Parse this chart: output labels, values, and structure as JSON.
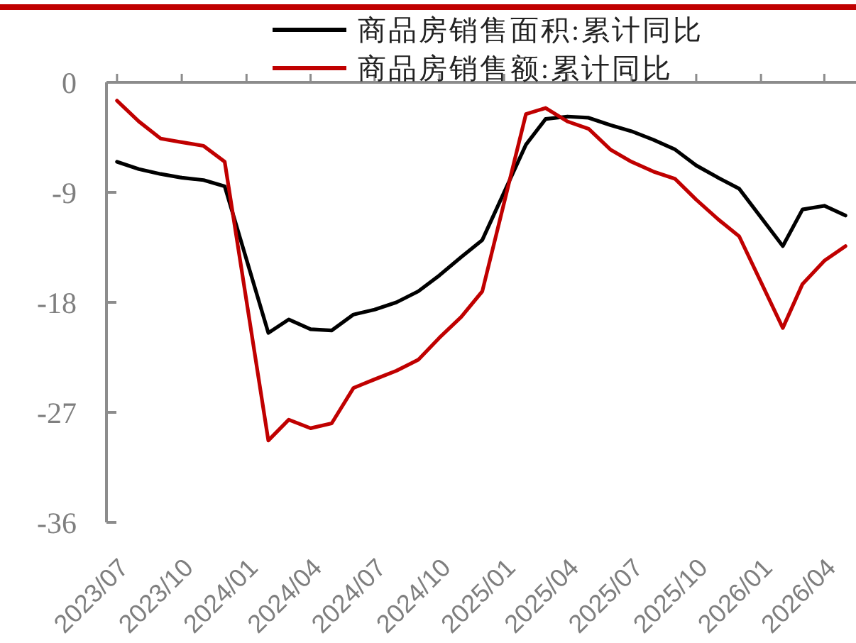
{
  "chart_data": {
    "type": "line",
    "legend": "top",
    "xlim": [
      "2023-06-16",
      "2026-05-16"
    ],
    "xticks": [
      {
        "value": "2023-07",
        "label": "2023/07"
      },
      {
        "value": "2023-10",
        "label": "2023/10"
      },
      {
        "value": "2024-01",
        "label": "2024/01"
      },
      {
        "value": "2024-04",
        "label": "2024/04"
      },
      {
        "value": "2024-07",
        "label": "2024/07"
      },
      {
        "value": "2024-10",
        "label": "2024/10"
      },
      {
        "value": "2025-01",
        "label": "2025/01"
      },
      {
        "value": "2025-04",
        "label": "2025/04"
      },
      {
        "value": "2025-07",
        "label": "2025/07"
      },
      {
        "value": "2025-10",
        "label": "2025/10"
      },
      {
        "value": "2026-01",
        "label": "2026/01"
      },
      {
        "value": "2026-04",
        "label": "2026/04"
      }
    ],
    "ylim": [
      -36,
      0
    ],
    "yticks": [
      -36,
      -27,
      -18,
      -9,
      0
    ],
    "x": [
      "2023-07",
      "2023-08",
      "2023-09",
      "2023-10",
      "2023-11",
      "2023-12",
      "2024-02",
      "2024-03",
      "2024-04",
      "2024-05",
      "2024-06",
      "2024-07",
      "2024-08",
      "2024-09",
      "2024-10",
      "2024-11",
      "2024-12",
      "2025-02",
      "2025-03",
      "2025-04",
      "2025-05",
      "2025-06",
      "2025-07",
      "2025-08",
      "2025-09",
      "2025-10",
      "2025-11",
      "2025-12",
      "2026-02",
      "2026-03",
      "2026-04",
      "2026-05"
    ],
    "series": [
      {
        "name": "商品房销售面积:累计同比",
        "color": "#000000",
        "values": [
          -6.5,
          -7.1,
          -7.5,
          -7.8,
          -8.0,
          -8.5,
          -20.5,
          -19.4,
          -20.2,
          -20.3,
          -19.0,
          -18.6,
          -18.0,
          -17.1,
          -15.8,
          -14.3,
          -12.9,
          -5.1,
          -3.0,
          -2.8,
          -2.9,
          -3.5,
          -4.0,
          -4.7,
          -5.5,
          -6.8,
          -7.8,
          -8.7,
          -13.4,
          -10.4,
          -10.1,
          -10.9
        ]
      },
      {
        "name": "商品房销售额:累计同比",
        "color": "#c00000",
        "values": [
          -1.5,
          -3.2,
          -4.6,
          -4.9,
          -5.2,
          -6.5,
          -29.3,
          -27.6,
          -28.3,
          -27.9,
          -25.0,
          -24.3,
          -23.6,
          -22.7,
          -20.9,
          -19.2,
          -17.1,
          -2.6,
          -2.1,
          -3.2,
          -3.8,
          -5.5,
          -6.5,
          -7.3,
          -7.9,
          -9.6,
          -11.2,
          -12.6,
          -20.1,
          -16.5,
          -14.6,
          -13.4
        ]
      }
    ]
  }
}
